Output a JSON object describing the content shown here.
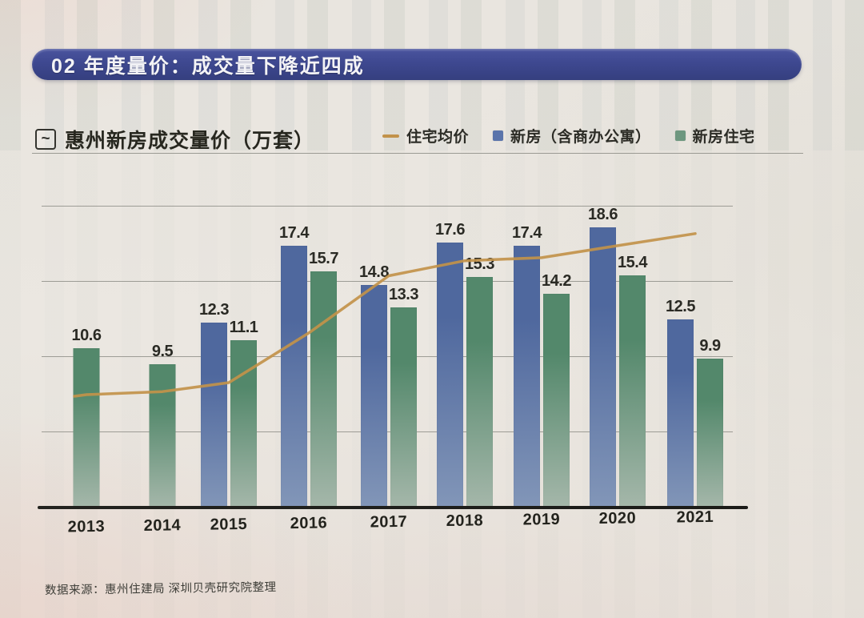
{
  "banner": {
    "label": "02 年度量价：成交量下降近四成"
  },
  "header": {
    "title": "惠州新房成交量价（万套）",
    "title_icon": "line-chart-icon",
    "legend": [
      {
        "label": "住宅均价",
        "marker": "line",
        "color": "#c2924a"
      },
      {
        "label": "新房（含商办公寓）",
        "marker": "square",
        "color": "#5a74ab"
      },
      {
        "label": "新房住宅",
        "marker": "square",
        "color": "#6d977f"
      }
    ]
  },
  "chart_data": {
    "type": "bar",
    "title": "惠州新房成交量价（万套）",
    "unit": "万套",
    "categories": [
      "2013",
      "2014",
      "2015",
      "2016",
      "2017",
      "2018",
      "2019",
      "2020",
      "2021"
    ],
    "series": [
      {
        "name": "新房（含商办公寓）",
        "kind": "bar",
        "color_top": "#4f689e",
        "color_bottom": "#8296b8",
        "values": [
          null,
          null,
          12.3,
          17.4,
          14.8,
          17.6,
          17.4,
          18.6,
          12.5
        ]
      },
      {
        "name": "新房住宅",
        "kind": "bar",
        "color_top": "#53886b",
        "color_bottom": "#a5b7aa",
        "values": [
          10.6,
          9.5,
          11.1,
          15.7,
          13.3,
          15.3,
          14.2,
          15.4,
          9.9
        ]
      },
      {
        "name": "住宅均价",
        "kind": "line",
        "color": "#c2924a",
        "axis": "unlabeled",
        "note": "price line has no labeled axis; values are positions estimated against the bar scale",
        "values": [
          7.5,
          7.7,
          8.3,
          11.6,
          15.4,
          16.4,
          16.6,
          17.4,
          18.2
        ]
      }
    ],
    "ylim": [
      0,
      20
    ],
    "gridlines": [
      5,
      10,
      15,
      20
    ],
    "grid": true,
    "legend_position": "top-right",
    "value_labels": true
  },
  "source": {
    "text": "数据来源：惠州住建局 深圳贝壳研究院整理"
  }
}
